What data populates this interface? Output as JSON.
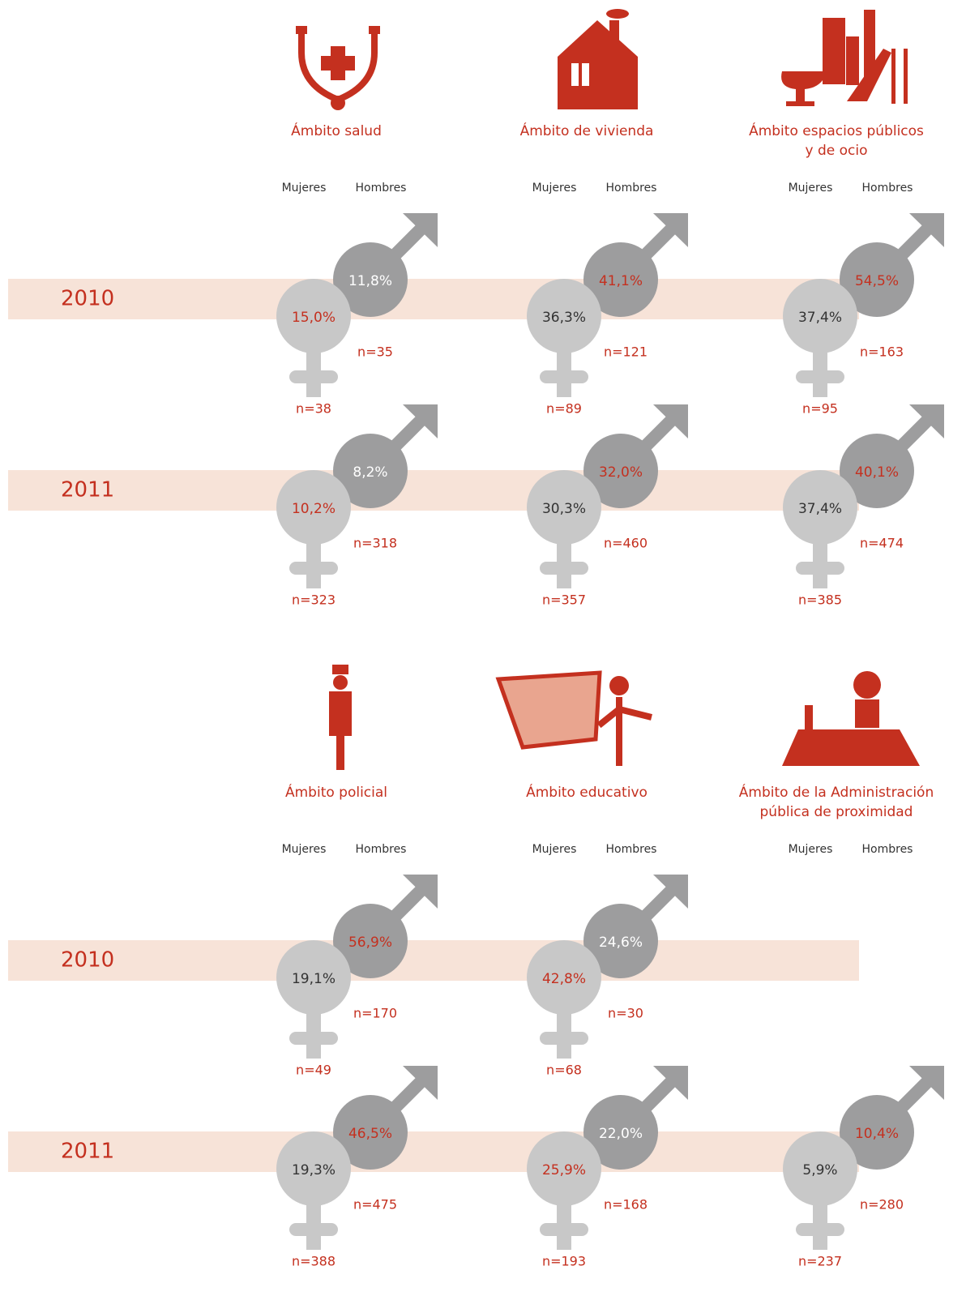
{
  "groups": [
    {
      "years": [
        "2010",
        "2011"
      ],
      "domains": [
        {
          "title": [
            "Ámbito salud"
          ],
          "legend": [
            "Mujeres",
            "Hombres"
          ],
          "rows": [
            {
              "women": "15,0%",
              "women_n": "n=38",
              "men": "11,8%",
              "men_n": "n=35"
            },
            {
              "women": "10,2%",
              "women_n": "n=323",
              "men": "8,2%",
              "men_n": "n=318"
            }
          ]
        },
        {
          "title": [
            "Ámbito de vivienda"
          ],
          "legend": [
            "Mujeres",
            "Hombres"
          ],
          "rows": [
            {
              "women": "36,3%",
              "women_n": "n=89",
              "men": "41,1%",
              "men_n": "n=121"
            },
            {
              "women": "30,3%",
              "women_n": "n=357",
              "men": "32,0%",
              "men_n": "n=460"
            }
          ]
        },
        {
          "title": [
            "Ámbito espacios públicos",
            "y de ocio"
          ],
          "legend": [
            "Mujeres",
            "Hombres"
          ],
          "rows": [
            {
              "women": "37,4%",
              "women_n": "n=95",
              "men": "54,5%",
              "men_n": "n=163"
            },
            {
              "women": "37,4%",
              "women_n": "n=385",
              "men": "40,1%",
              "men_n": "n=474"
            }
          ]
        }
      ]
    },
    {
      "years": [
        "2010",
        "2011"
      ],
      "domains": [
        {
          "title": [
            "Ámbito policial"
          ],
          "legend": [
            "Mujeres",
            "Hombres"
          ],
          "rows": [
            {
              "women": "19,1%",
              "women_n": "n=49",
              "men": "56,9%",
              "men_n": "n=170"
            },
            {
              "women": "19,3%",
              "women_n": "n=388",
              "men": "46,5%",
              "men_n": "n=475"
            }
          ]
        },
        {
          "title": [
            "Ámbito educativo"
          ],
          "legend": [
            "Mujeres",
            "Hombres"
          ],
          "rows": [
            {
              "women": "42,8%",
              "women_n": "n=68",
              "men": "24,6%",
              "men_n": "n=30"
            },
            {
              "women": "25,9%",
              "women_n": "n=193",
              "men": "22,0%",
              "men_n": "n=168"
            }
          ]
        },
        {
          "title": [
            "Ámbito de la Administración",
            "pública de proximidad"
          ],
          "legend": [
            "Mujeres",
            "Hombres"
          ],
          "rows": [
            null,
            {
              "women": "5,9%",
              "women_n": "n=237",
              "men": "10,4%",
              "men_n": "n=280"
            }
          ]
        }
      ]
    }
  ]
}
